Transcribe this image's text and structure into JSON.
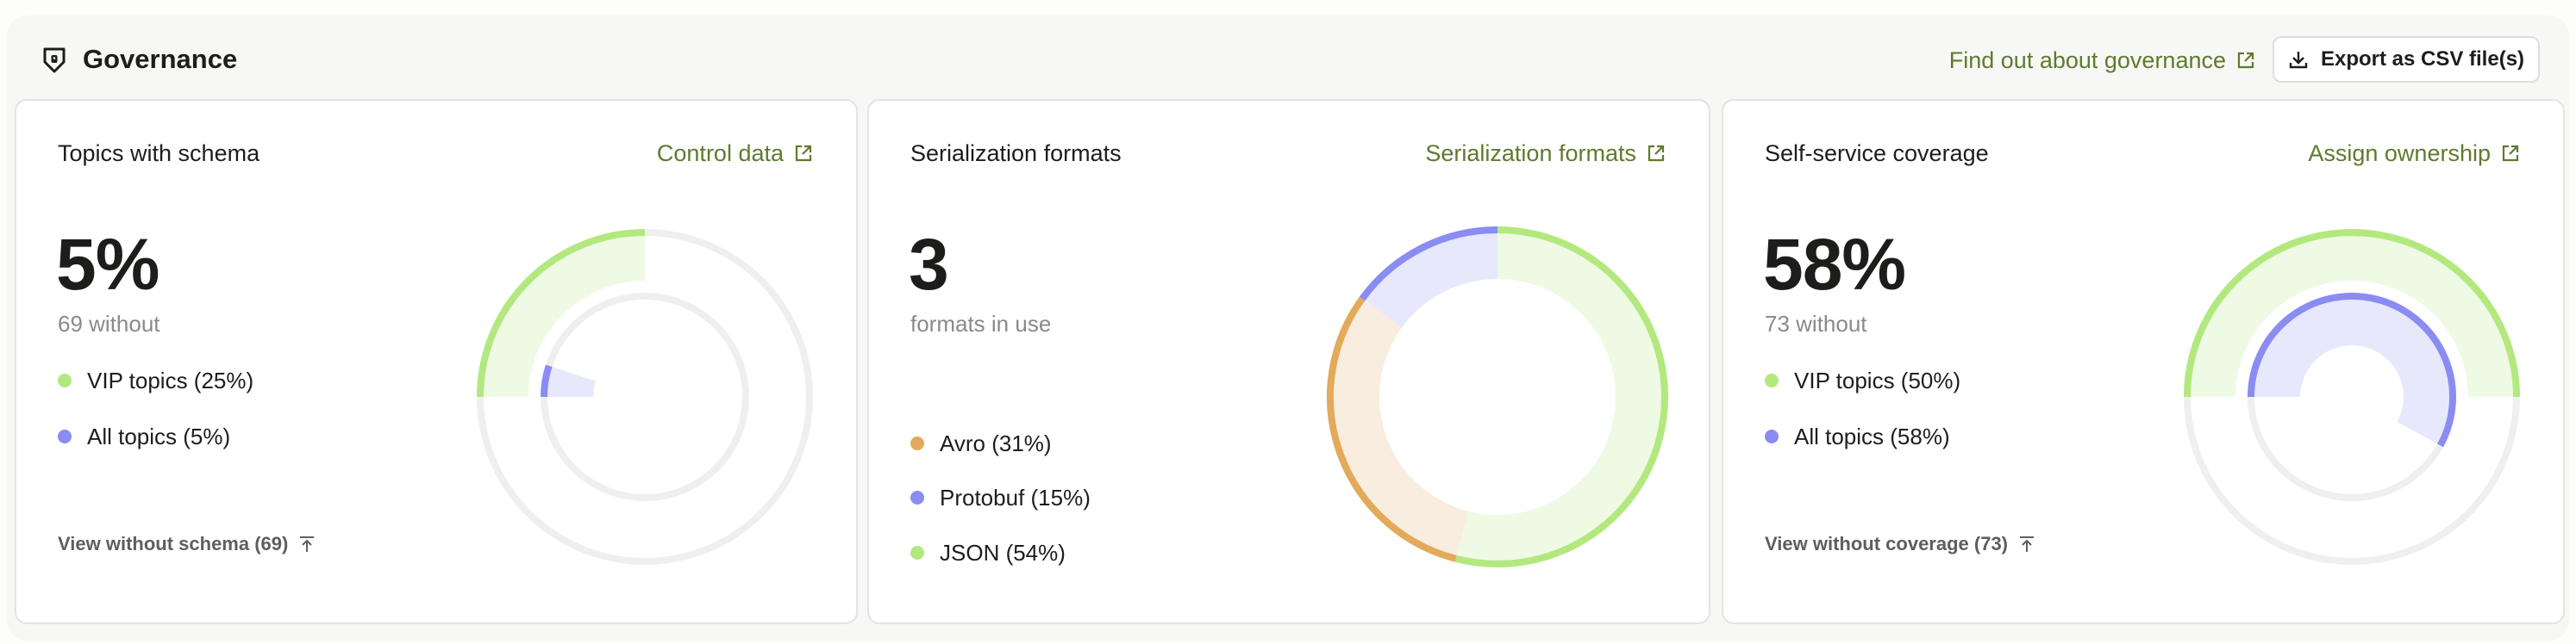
{
  "header": {
    "title": "Governance",
    "icon": "shield-lock-icon",
    "find_out_link": "Find out about governance",
    "export_button": "Export as CSV file(s)"
  },
  "colors": {
    "green": "#b3e87f",
    "green_light": "#eefae4",
    "blue": "#8a8cf2",
    "blue_light": "#e7e8fc",
    "orange": "#e2aa5a",
    "orange_light": "#f8eddf",
    "track": "#efefee",
    "link": "#5f7a2d"
  },
  "cards": [
    {
      "title": "Topics with schema",
      "link": "Control data",
      "value": "5%",
      "sub": "69 without",
      "legend": [
        {
          "label": "VIP topics (25%)",
          "color": "#b3e87f"
        },
        {
          "label": "All topics (5%)",
          "color": "#8a8cf2"
        }
      ],
      "bottom_link": "View without schema (69)"
    },
    {
      "title": "Serialization formats",
      "link": "Serialization formats",
      "value": "3",
      "sub": "formats in use",
      "legend": [
        {
          "label": "Avro (31%)",
          "color": "#e2aa5a"
        },
        {
          "label": "Protobuf (15%)",
          "color": "#8a8cf2"
        },
        {
          "label": "JSON (54%)",
          "color": "#b3e87f"
        }
      ]
    },
    {
      "title": "Self-service coverage",
      "link": "Assign ownership",
      "value": "58%",
      "sub": "73 without",
      "legend": [
        {
          "label": "VIP topics (50%)",
          "color": "#b3e87f"
        },
        {
          "label": "All topics (58%)",
          "color": "#8a8cf2"
        }
      ],
      "bottom_link": "View without coverage (73)"
    }
  ],
  "chart_data": [
    {
      "type": "pie",
      "variant": "radial-gauge",
      "series": [
        {
          "name": "VIP topics",
          "value": 25
        },
        {
          "name": "All topics",
          "value": 5
        }
      ],
      "unit": "%"
    },
    {
      "type": "pie",
      "variant": "donut",
      "categories": [
        "JSON",
        "Avro",
        "Protobuf"
      ],
      "values": [
        54,
        31,
        15
      ],
      "unit": "%"
    },
    {
      "type": "pie",
      "variant": "radial-gauge",
      "series": [
        {
          "name": "VIP topics",
          "value": 50
        },
        {
          "name": "All topics",
          "value": 58
        }
      ],
      "unit": "%"
    }
  ]
}
